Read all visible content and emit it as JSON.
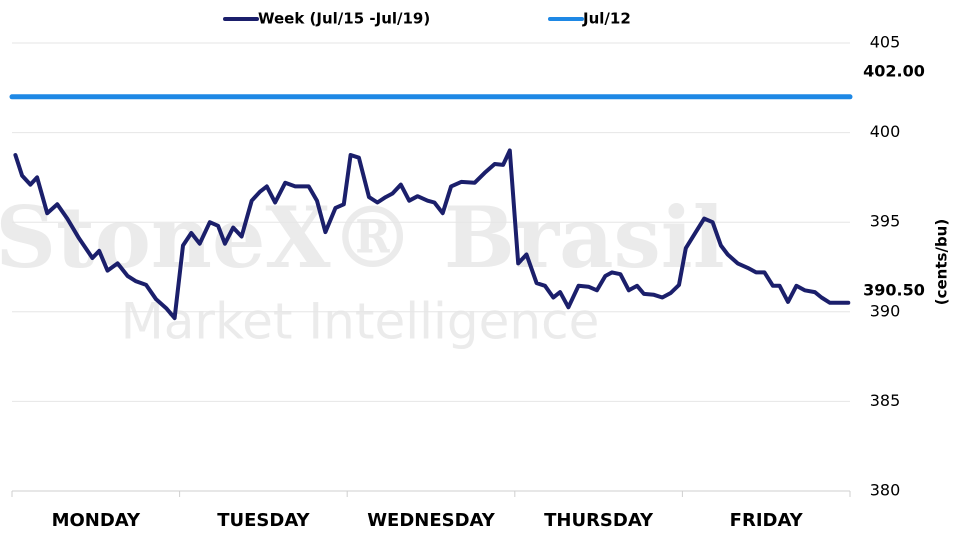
{
  "chart_data": {
    "type": "line",
    "axis_label": "(cents/bu)",
    "watermark": [
      "StoneX® Brasil",
      "Market Intelligence"
    ],
    "x_labels": [
      "MONDAY",
      "TUESDAY",
      "WEDNESDAY",
      "THURSDAY",
      "FRIDAY"
    ],
    "xlim": [
      0,
      5
    ],
    "ylim": [
      380,
      405
    ],
    "yticks": [
      380,
      385,
      390,
      395,
      400,
      405
    ],
    "grid": true,
    "series": [
      {
        "name": "Week (Jul/15 -Jul/19)",
        "color": "#1b1f6b",
        "x": [
          0.02,
          0.06,
          0.11,
          0.15,
          0.21,
          0.27,
          0.33,
          0.4,
          0.48,
          0.52,
          0.57,
          0.63,
          0.69,
          0.74,
          0.8,
          0.86,
          0.92,
          0.97,
          1.02,
          1.07,
          1.12,
          1.18,
          1.23,
          1.27,
          1.32,
          1.37,
          1.43,
          1.48,
          1.52,
          1.57,
          1.63,
          1.69,
          1.77,
          1.82,
          1.87,
          1.93,
          1.98,
          2.02,
          2.07,
          2.13,
          2.18,
          2.23,
          2.27,
          2.32,
          2.37,
          2.42,
          2.48,
          2.52,
          2.57,
          2.62,
          2.68,
          2.76,
          2.82,
          2.88,
          2.93,
          2.97,
          3.02,
          3.07,
          3.13,
          3.18,
          3.23,
          3.27,
          3.32,
          3.38,
          3.44,
          3.49,
          3.54,
          3.58,
          3.63,
          3.68,
          3.73,
          3.77,
          3.83,
          3.88,
          3.93,
          3.98,
          4.02,
          4.08,
          4.13,
          4.18,
          4.23,
          4.27,
          4.33,
          4.39,
          4.44,
          4.49,
          4.54,
          4.58,
          4.63,
          4.68,
          4.73,
          4.79,
          4.83,
          4.88,
          4.99
        ],
        "values": [
          398.75,
          397.6,
          397.1,
          397.5,
          395.5,
          396.0,
          395.2,
          394.1,
          393.0,
          393.4,
          392.3,
          392.7,
          392.0,
          391.7,
          391.5,
          390.7,
          390.2,
          389.65,
          393.7,
          394.4,
          393.8,
          395.0,
          394.8,
          393.8,
          394.7,
          394.2,
          396.2,
          396.7,
          397.0,
          396.1,
          397.2,
          397.0,
          397.0,
          396.2,
          394.45,
          395.8,
          396.0,
          398.75,
          398.6,
          396.4,
          396.1,
          396.4,
          396.6,
          397.1,
          396.2,
          396.45,
          396.2,
          396.1,
          395.5,
          397.0,
          397.25,
          397.2,
          397.75,
          398.25,
          398.2,
          399.0,
          392.7,
          393.2,
          391.6,
          391.45,
          390.8,
          391.1,
          390.25,
          391.45,
          391.4,
          391.2,
          392.0,
          392.2,
          392.1,
          391.2,
          391.45,
          391.0,
          390.95,
          390.8,
          391.05,
          391.5,
          393.55,
          394.45,
          395.2,
          395.0,
          393.7,
          393.2,
          392.7,
          392.45,
          392.2,
          392.2,
          391.45,
          391.45,
          390.55,
          391.45,
          391.2,
          391.1,
          390.8,
          390.5,
          390.5
        ],
        "end_label": "390.50"
      },
      {
        "name": "Jul/12",
        "color": "#1e88e5",
        "x": [
          0,
          5
        ],
        "values": [
          402,
          402
        ],
        "end_label": "402.00"
      }
    ]
  }
}
